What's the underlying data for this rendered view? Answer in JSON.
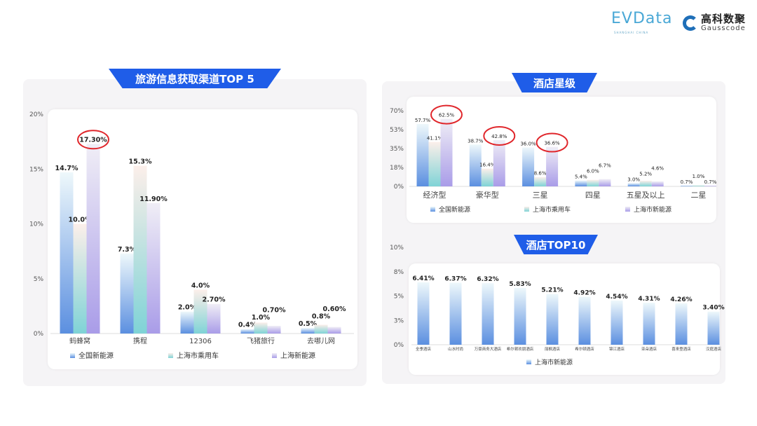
{
  "logos": {
    "evdata": "EVData",
    "evdata_sub": "SHANGHAI CHINA",
    "gauss_cn": "高科数聚",
    "gauss_en": "Gausscode"
  },
  "colors": {
    "banner": "#1f5de8",
    "highlight": "#e0262b",
    "series": [
      "#5b8fe0",
      "#7fd3d6",
      "#a99ce8"
    ]
  },
  "chart_data": [
    {
      "type": "bar",
      "title": "旅游信息获取渠道TOP 5",
      "categories": [
        "蚂蜂窝",
        "携程",
        "12306",
        "飞猪旅行",
        "去哪儿网"
      ],
      "series": [
        {
          "name": "全国新能源",
          "values": [
            14.7,
            7.3,
            2.0,
            0.4,
            0.5
          ],
          "labels": [
            "14.7%",
            "7.3%",
            "2.0%",
            "0.4%",
            "0.5%"
          ]
        },
        {
          "name": "上海市乘用车",
          "values": [
            10.0,
            15.3,
            4.0,
            1.0,
            0.8
          ],
          "labels": [
            "10.0%",
            "15.3%",
            "4.0%",
            "1.0%",
            "0.8%"
          ]
        },
        {
          "name": "上海新能源",
          "values": [
            17.3,
            11.9,
            2.7,
            0.7,
            0.6
          ],
          "labels": [
            "17.30%",
            "11.90%",
            "2.70%",
            "0.70%",
            "0.60%"
          ]
        }
      ],
      "yticks": [
        0,
        5,
        10,
        15,
        20
      ],
      "ytick_labels": [
        "0%",
        "5%",
        "10%",
        "15%",
        "20%"
      ],
      "ylim": [
        0,
        20
      ],
      "legend": "bottom",
      "highlights": [
        {
          "category": 0,
          "series": 2
        }
      ]
    },
    {
      "type": "bar",
      "title": "酒店星级",
      "categories": [
        "经济型",
        "豪华型",
        "三星",
        "四星",
        "五星及以上",
        "二星"
      ],
      "series": [
        {
          "name": "全国新能源",
          "values": [
            57.7,
            38.7,
            36.0,
            5.4,
            3.0,
            0.7
          ],
          "labels": [
            "57.7%",
            "38.7%",
            "36.0%",
            "5.4%",
            "3.0%",
            "0.7%"
          ]
        },
        {
          "name": "上海市乘用车",
          "values": [
            41.1,
            16.4,
            8.6,
            6.0,
            5.2,
            1.0
          ],
          "labels": [
            "41.1%",
            "16.4%",
            "8.6%",
            "6.0%",
            "5.2%",
            "1.0%"
          ]
        },
        {
          "name": "上海市新能源",
          "values": [
            62.5,
            42.8,
            36.6,
            6.7,
            4.6,
            0.7
          ],
          "labels": [
            "62.5%",
            "42.8%",
            "36.6%",
            "6.7%",
            "4.6%",
            "0.7%"
          ]
        }
      ],
      "yticks": [
        0,
        17.5,
        35,
        52.5,
        70
      ],
      "ytick_labels": [
        "0%",
        "18%",
        "35%",
        "53%",
        "70%"
      ],
      "ylim": [
        0,
        70
      ],
      "legend": "bottom",
      "highlights": [
        {
          "category": 0,
          "series": 2
        },
        {
          "category": 1,
          "series": 2
        },
        {
          "category": 2,
          "series": 2
        }
      ]
    },
    {
      "type": "bar",
      "title": "酒店TOP10",
      "categories": [
        "全季酒店",
        "山水时尚",
        "万豪商务大酒店",
        "希尔顿欢朋酒店",
        "丽枫酒店",
        "希尔顿酒店",
        "锦江酒店",
        "亚朵酒店",
        "喜来登酒店",
        "汉庭酒店"
      ],
      "series": [
        {
          "name": "上海市新能源",
          "values": [
            6.41,
            6.37,
            6.32,
            5.83,
            5.21,
            4.92,
            4.54,
            4.31,
            4.26,
            3.4
          ],
          "labels": [
            "6.41%",
            "6.37%",
            "6.32%",
            "5.83%",
            "5.21%",
            "4.92%",
            "4.54%",
            "4.31%",
            "4.26%",
            "3.40%"
          ]
        }
      ],
      "yticks": [
        0,
        2.5,
        5,
        7.5,
        10
      ],
      "ytick_labels": [
        "0%",
        "3%",
        "5%",
        "8%",
        "10%"
      ],
      "ylim": [
        0,
        10
      ],
      "legend": "bottom",
      "highlights": []
    }
  ]
}
